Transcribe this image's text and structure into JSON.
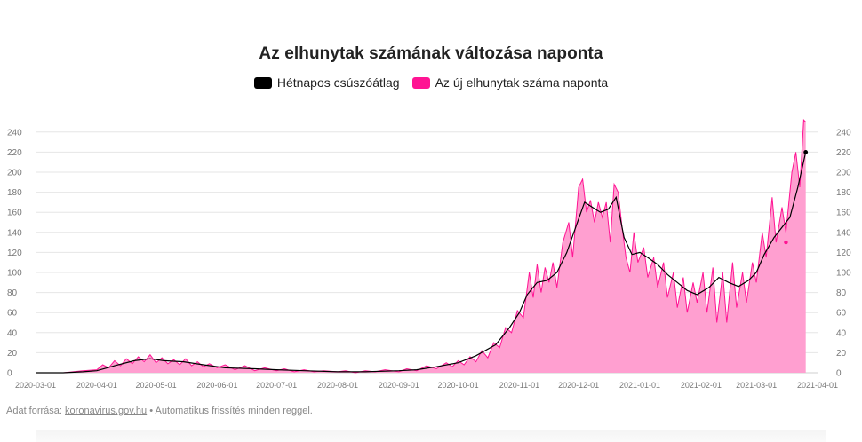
{
  "chart_data": {
    "type": "area",
    "title": "Az elhunytak számának változása naponta",
    "xlabel": "",
    "ylabel": "",
    "ylim": [
      0,
      250
    ],
    "y_ticks": [
      0,
      20,
      40,
      60,
      80,
      100,
      120,
      140,
      160,
      180,
      200,
      220,
      240
    ],
    "x_ticks": [
      "2020-03-01",
      "2020-04-01",
      "2020-05-01",
      "2020-06-01",
      "2020-07-01",
      "2020-08-01",
      "2020-09-01",
      "2020-10-01",
      "2020-11-01",
      "2020-12-01",
      "2021-01-01",
      "2021-02-01",
      "2021-03-01",
      "2021-04-01"
    ],
    "x_range": [
      "2020-03-01",
      "2021-04-01"
    ],
    "grid": true,
    "legend_position": "top-center",
    "series": [
      {
        "name": "Hétnapos csúszóátlag",
        "type": "line",
        "color": "#000000",
        "points": [
          [
            "2020-03-01",
            0
          ],
          [
            "2020-03-15",
            0
          ],
          [
            "2020-03-25",
            1
          ],
          [
            "2020-04-01",
            2
          ],
          [
            "2020-04-10",
            7
          ],
          [
            "2020-04-20",
            12
          ],
          [
            "2020-04-28",
            14
          ],
          [
            "2020-05-05",
            12
          ],
          [
            "2020-05-15",
            11
          ],
          [
            "2020-05-25",
            8
          ],
          [
            "2020-06-05",
            5
          ],
          [
            "2020-06-20",
            4
          ],
          [
            "2020-07-01",
            3
          ],
          [
            "2020-07-15",
            2
          ],
          [
            "2020-08-01",
            1
          ],
          [
            "2020-08-15",
            1
          ],
          [
            "2020-09-01",
            2
          ],
          [
            "2020-09-10",
            3
          ],
          [
            "2020-09-20",
            6
          ],
          [
            "2020-10-01",
            10
          ],
          [
            "2020-10-10",
            17
          ],
          [
            "2020-10-20",
            28
          ],
          [
            "2020-10-27",
            45
          ],
          [
            "2020-11-01",
            60
          ],
          [
            "2020-11-05",
            78
          ],
          [
            "2020-11-10",
            90
          ],
          [
            "2020-11-15",
            92
          ],
          [
            "2020-11-20",
            100
          ],
          [
            "2020-11-25",
            120
          ],
          [
            "2020-11-30",
            148
          ],
          [
            "2020-12-04",
            170
          ],
          [
            "2020-12-08",
            165
          ],
          [
            "2020-12-12",
            160
          ],
          [
            "2020-12-16",
            163
          ],
          [
            "2020-12-20",
            175
          ],
          [
            "2020-12-24",
            135
          ],
          [
            "2020-12-28",
            118
          ],
          [
            "2021-01-01",
            120
          ],
          [
            "2021-01-05",
            115
          ],
          [
            "2021-01-10",
            108
          ],
          [
            "2021-01-15",
            98
          ],
          [
            "2021-01-20",
            90
          ],
          [
            "2021-01-25",
            82
          ],
          [
            "2021-01-30",
            78
          ],
          [
            "2021-02-05",
            85
          ],
          [
            "2021-02-10",
            95
          ],
          [
            "2021-02-15",
            90
          ],
          [
            "2021-02-20",
            86
          ],
          [
            "2021-02-25",
            92
          ],
          [
            "2021-03-01",
            100
          ],
          [
            "2021-03-05",
            118
          ],
          [
            "2021-03-10",
            135
          ],
          [
            "2021-03-14",
            145
          ],
          [
            "2021-03-18",
            155
          ],
          [
            "2021-03-22",
            185
          ],
          [
            "2021-03-26",
            220
          ]
        ]
      },
      {
        "name": "Az új elhunytak száma naponta",
        "type": "area",
        "color": "#ff1493",
        "fill": "#ff9fd0",
        "points": [
          [
            "2020-03-01",
            0
          ],
          [
            "2020-03-15",
            0
          ],
          [
            "2020-03-20",
            1
          ],
          [
            "2020-03-25",
            2
          ],
          [
            "2020-04-01",
            3
          ],
          [
            "2020-04-04",
            8
          ],
          [
            "2020-04-07",
            5
          ],
          [
            "2020-04-10",
            12
          ],
          [
            "2020-04-13",
            7
          ],
          [
            "2020-04-16",
            14
          ],
          [
            "2020-04-19",
            9
          ],
          [
            "2020-04-22",
            16
          ],
          [
            "2020-04-25",
            11
          ],
          [
            "2020-04-28",
            18
          ],
          [
            "2020-05-01",
            10
          ],
          [
            "2020-05-04",
            15
          ],
          [
            "2020-05-07",
            9
          ],
          [
            "2020-05-10",
            13
          ],
          [
            "2020-05-13",
            8
          ],
          [
            "2020-05-16",
            14
          ],
          [
            "2020-05-19",
            7
          ],
          [
            "2020-05-22",
            11
          ],
          [
            "2020-05-25",
            6
          ],
          [
            "2020-05-28",
            9
          ],
          [
            "2020-06-01",
            5
          ],
          [
            "2020-06-05",
            8
          ],
          [
            "2020-06-10",
            3
          ],
          [
            "2020-06-15",
            7
          ],
          [
            "2020-06-20",
            2
          ],
          [
            "2020-06-25",
            5
          ],
          [
            "2020-07-01",
            2
          ],
          [
            "2020-07-05",
            4
          ],
          [
            "2020-07-10",
            1
          ],
          [
            "2020-07-15",
            3
          ],
          [
            "2020-07-20",
            1
          ],
          [
            "2020-07-25",
            2
          ],
          [
            "2020-08-01",
            1
          ],
          [
            "2020-08-05",
            2
          ],
          [
            "2020-08-10",
            0
          ],
          [
            "2020-08-15",
            2
          ],
          [
            "2020-08-20",
            1
          ],
          [
            "2020-08-25",
            3
          ],
          [
            "2020-09-01",
            1
          ],
          [
            "2020-09-05",
            4
          ],
          [
            "2020-09-10",
            2
          ],
          [
            "2020-09-15",
            7
          ],
          [
            "2020-09-20",
            4
          ],
          [
            "2020-09-25",
            10
          ],
          [
            "2020-09-28",
            6
          ],
          [
            "2020-10-01",
            12
          ],
          [
            "2020-10-04",
            8
          ],
          [
            "2020-10-07",
            16
          ],
          [
            "2020-10-10",
            11
          ],
          [
            "2020-10-13",
            22
          ],
          [
            "2020-10-16",
            15
          ],
          [
            "2020-10-19",
            30
          ],
          [
            "2020-10-22",
            25
          ],
          [
            "2020-10-25",
            45
          ],
          [
            "2020-10-28",
            40
          ],
          [
            "2020-10-31",
            62
          ],
          [
            "2020-11-03",
            55
          ],
          [
            "2020-11-06",
            100
          ],
          [
            "2020-11-08",
            75
          ],
          [
            "2020-11-10",
            108
          ],
          [
            "2020-11-12",
            80
          ],
          [
            "2020-11-14",
            105
          ],
          [
            "2020-11-16",
            90
          ],
          [
            "2020-11-18",
            110
          ],
          [
            "2020-11-20",
            85
          ],
          [
            "2020-11-23",
            130
          ],
          [
            "2020-11-26",
            150
          ],
          [
            "2020-11-28",
            115
          ],
          [
            "2020-12-01",
            185
          ],
          [
            "2020-12-03",
            193
          ],
          [
            "2020-12-05",
            160
          ],
          [
            "2020-12-07",
            172
          ],
          [
            "2020-12-09",
            150
          ],
          [
            "2020-12-11",
            170
          ],
          [
            "2020-12-13",
            155
          ],
          [
            "2020-12-15",
            170
          ],
          [
            "2020-12-17",
            130
          ],
          [
            "2020-12-19",
            188
          ],
          [
            "2020-12-21",
            180
          ],
          [
            "2020-12-23",
            145
          ],
          [
            "2020-12-25",
            115
          ],
          [
            "2020-12-27",
            100
          ],
          [
            "2020-12-29",
            140
          ],
          [
            "2020-12-31",
            110
          ],
          [
            "2021-01-03",
            125
          ],
          [
            "2021-01-05",
            95
          ],
          [
            "2021-01-08",
            115
          ],
          [
            "2021-01-10",
            85
          ],
          [
            "2021-01-13",
            110
          ],
          [
            "2021-01-15",
            75
          ],
          [
            "2021-01-18",
            100
          ],
          [
            "2021-01-20",
            65
          ],
          [
            "2021-01-23",
            95
          ],
          [
            "2021-01-25",
            60
          ],
          [
            "2021-01-28",
            90
          ],
          [
            "2021-01-30",
            70
          ],
          [
            "2021-02-02",
            100
          ],
          [
            "2021-02-04",
            60
          ],
          [
            "2021-02-07",
            105
          ],
          [
            "2021-02-09",
            50
          ],
          [
            "2021-02-12",
            100
          ],
          [
            "2021-02-14",
            50
          ],
          [
            "2021-02-17",
            110
          ],
          [
            "2021-02-19",
            65
          ],
          [
            "2021-02-22",
            100
          ],
          [
            "2021-02-24",
            70
          ],
          [
            "2021-02-27",
            110
          ],
          [
            "2021-03-01",
            90
          ],
          [
            "2021-03-04",
            140
          ],
          [
            "2021-03-06",
            115
          ],
          [
            "2021-03-09",
            175
          ],
          [
            "2021-03-11",
            130
          ],
          [
            "2021-03-14",
            165
          ],
          [
            "2021-03-16",
            140
          ],
          [
            "2021-03-19",
            200
          ],
          [
            "2021-03-21",
            220
          ],
          [
            "2021-03-23",
            185
          ],
          [
            "2021-03-25",
            252
          ],
          [
            "2021-03-26",
            250
          ]
        ]
      }
    ],
    "annotations": {
      "marker_points": [
        [
          "2021-03-16",
          130
        ],
        [
          "2021-03-26",
          220
        ]
      ]
    }
  },
  "legend": {
    "moving_avg_label": "Hétnapos csúszóátlag",
    "daily_label": "Az új elhunytak száma naponta"
  },
  "source": {
    "prefix": "Adat forrása:",
    "link_text": "koronavirus.gov.hu",
    "suffix": "• Automatikus frissítés minden reggel."
  },
  "colors": {
    "moving_avg": "#000000",
    "daily_line": "#ff1493",
    "daily_fill": "#ff9fd0",
    "grid": "#e6e6e6"
  }
}
